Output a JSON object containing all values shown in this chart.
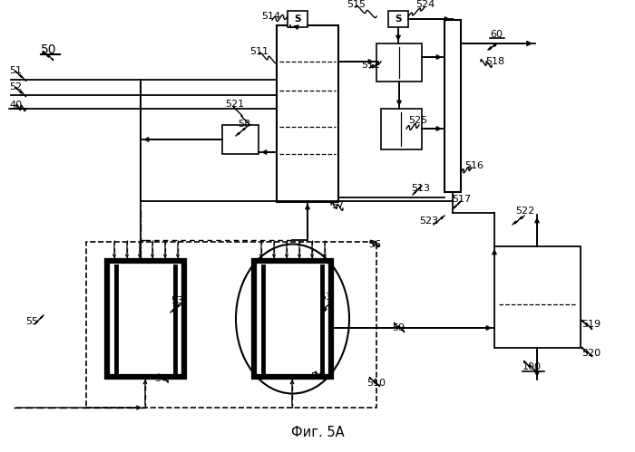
{
  "title": "Фиг. 5А",
  "bg_color": "#ffffff",
  "fg_color": "#000000",
  "fig_width": 7.0,
  "fig_height": 4.99,
  "dpi": 100
}
